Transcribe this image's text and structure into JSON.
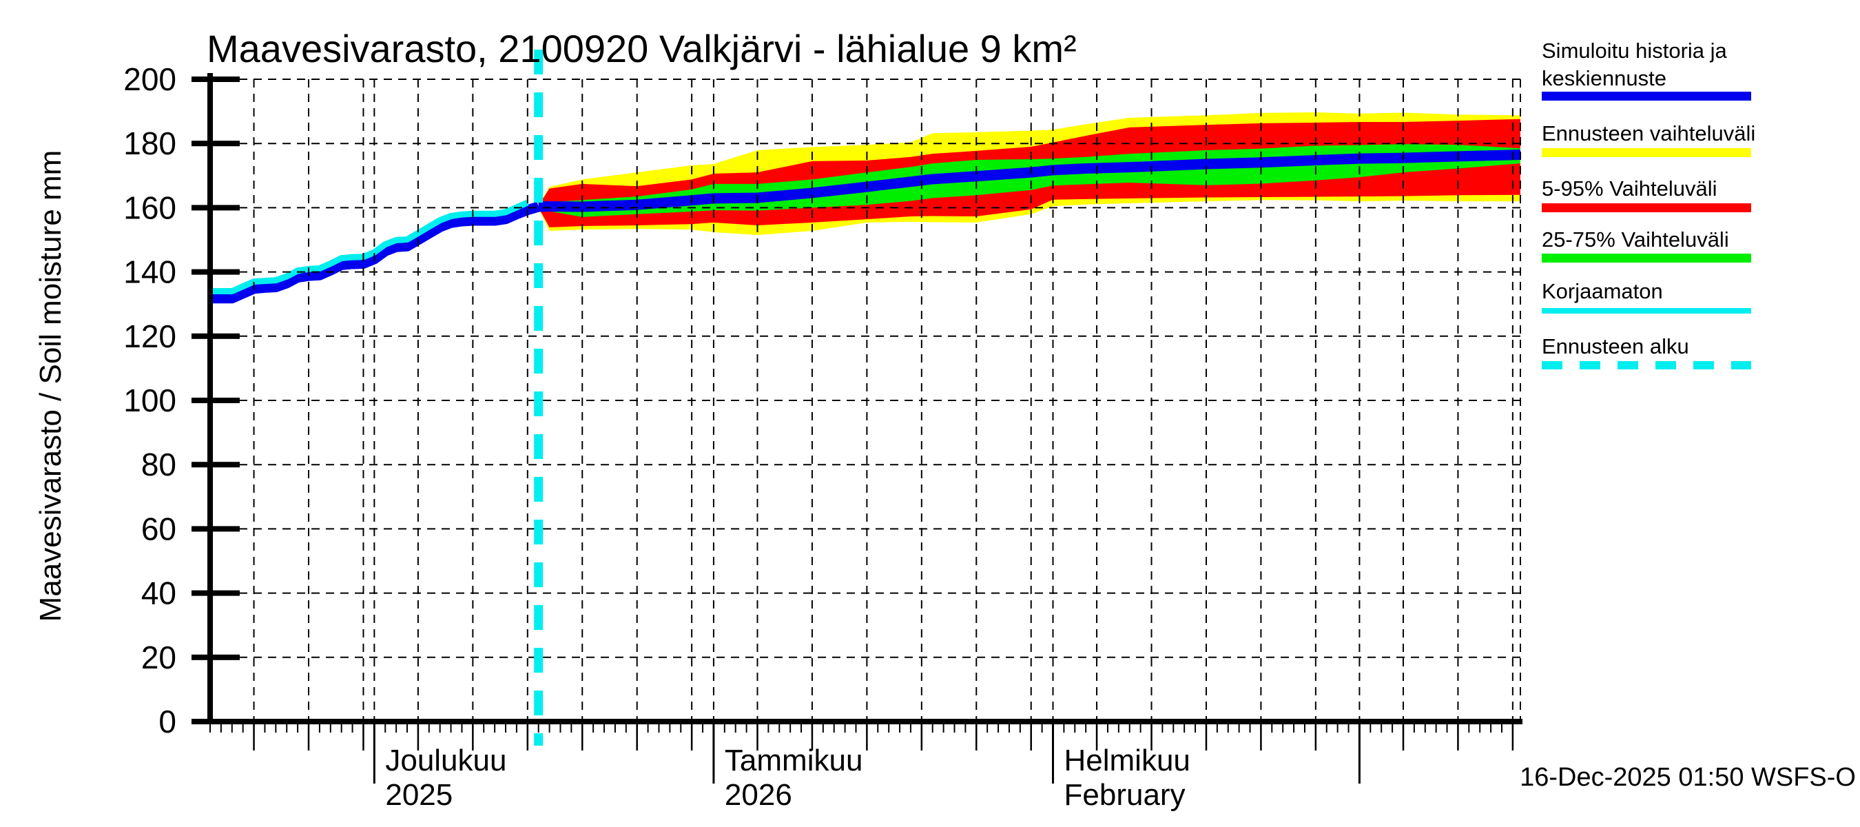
{
  "title": "Maavesivarasto, 2100920 Valkjärvi - lähialue 9 km²",
  "footer": {
    "timestamp": "16-Dec-2025 01:50 WSFS-O"
  },
  "y_axis": {
    "label": "Maavesivarasto / Soil moisture",
    "unit": "mm",
    "label_full": "Maavesivarasto / Soil moisture  mm",
    "min": 0,
    "max": 200,
    "ticks": [
      0,
      20,
      40,
      60,
      80,
      100,
      120,
      140,
      160,
      180,
      200
    ]
  },
  "x_axis": {
    "month_labels": [
      {
        "label": "Joulukuu",
        "sublabel": "2025",
        "start_day": 15
      },
      {
        "label": "Tammikuu",
        "sublabel": "2026",
        "start_day": 46
      },
      {
        "label": "Helmikuu",
        "sublabel": "February",
        "start_day": 77
      }
    ],
    "month_tick_days": [
      15,
      46,
      77,
      105
    ],
    "five_day_tick_days": [
      4,
      9,
      14,
      19,
      24,
      29,
      34,
      39,
      44,
      50,
      55,
      60,
      65,
      70,
      75,
      81,
      86,
      91,
      96,
      101,
      109,
      114,
      119
    ],
    "grid_days": [
      4,
      9,
      14,
      15,
      19,
      24,
      29,
      34,
      39,
      44,
      46,
      50,
      55,
      60,
      65,
      70,
      75,
      77,
      81,
      86,
      91,
      96,
      101,
      105,
      109,
      114,
      119,
      119.7
    ],
    "total_days": 119.7
  },
  "legend": {
    "entries": [
      {
        "name": "simulated-history-and-median-forecast",
        "lines": [
          "Simuloitu historia ja",
          "keskiennuste"
        ],
        "color": "#0000ee",
        "style": "solid",
        "thickness": 13
      },
      {
        "name": "forecast-range",
        "lines": [
          "Ennusteen vaihteluväli"
        ],
        "color": "#ffff00",
        "style": "solid",
        "thickness": 13
      },
      {
        "name": "range-5-95",
        "lines": [
          "5-95% Vaihteluväli"
        ],
        "color": "#ff0000",
        "style": "solid",
        "thickness": 13
      },
      {
        "name": "range-25-75",
        "lines": [
          "25-75% Vaihteluväli"
        ],
        "color": "#00ee00",
        "style": "solid",
        "thickness": 13
      },
      {
        "name": "uncorrected",
        "lines": [
          "Korjaamaton"
        ],
        "color": "#00eeee",
        "style": "solid",
        "thickness": 8
      },
      {
        "name": "forecast-start",
        "lines": [
          "Ennusteen alku"
        ],
        "color": "#00eeee",
        "style": "dashed",
        "thickness": 12
      }
    ]
  },
  "colors": {
    "history_blue": "#0000ee",
    "median_blue": "#0000ee",
    "korjaamaton_cyan": "#00eeee",
    "range_yellow": "#ffff00",
    "range_red": "#ff0000",
    "range_green": "#00ee00",
    "forecast_start_cyan": "#00eeee",
    "grid_black": "#000000"
  },
  "chart_data": {
    "type": "line",
    "title": "Maavesivarasto, 2100920 Valkjärvi - lähialue 9 km²",
    "ylabel": "Maavesivarasto / Soil moisture",
    "unit": "mm",
    "ylim": [
      0,
      200
    ],
    "x_domain_days": [
      0,
      119.7
    ],
    "forecast_start_day": 30,
    "grid": "dashed-both-axes",
    "legend_position": "right-outside",
    "history": {
      "name": "Simuloitu historia",
      "days": [
        0,
        1,
        2,
        3,
        4,
        5,
        6,
        7,
        8,
        9,
        10,
        11,
        12,
        13,
        14,
        15,
        16,
        17,
        18,
        19,
        20,
        21,
        22,
        23,
        24,
        25,
        26,
        27,
        28,
        29,
        30
      ],
      "values": [
        131.8,
        131.8,
        131.8,
        133.3,
        134.8,
        135.1,
        135.3,
        136.5,
        138.3,
        138.8,
        139.0,
        140.5,
        142.2,
        142.5,
        142.6,
        144.0,
        146.5,
        147.8,
        148.0,
        150.0,
        152.0,
        154.0,
        155.3,
        155.8,
        156.0,
        156.0,
        156.0,
        156.5,
        158.0,
        159.3,
        160.3
      ]
    },
    "korjaamaton": {
      "name": "Korjaamaton",
      "days": [
        0,
        1,
        2,
        3,
        4,
        5,
        6,
        7,
        8,
        9,
        10,
        11,
        12,
        13,
        14,
        15,
        16,
        17,
        18,
        19,
        20,
        21,
        22,
        23,
        24,
        25,
        26,
        27,
        28,
        29
      ],
      "values": [
        134.0,
        134.0,
        134.0,
        135.5,
        137.0,
        137.2,
        137.4,
        138.6,
        140.4,
        140.9,
        141.1,
        142.6,
        144.3,
        144.6,
        144.7,
        146.1,
        148.6,
        149.9,
        150.1,
        152.1,
        154.1,
        156.1,
        157.4,
        157.9,
        158.1,
        158.1,
        158.1,
        158.6,
        160.1,
        161.6
      ]
    },
    "forecast": {
      "days": [
        30,
        31,
        34,
        39,
        44,
        46,
        50,
        55,
        60,
        64,
        66,
        70,
        75,
        77,
        80,
        84,
        91,
        96,
        101,
        105,
        109,
        114,
        119.7
      ],
      "median": [
        160.3,
        160.4,
        160.3,
        160.9,
        162.3,
        162.9,
        163.1,
        164.6,
        166.5,
        168.1,
        168.9,
        169.8,
        171.0,
        171.7,
        172.2,
        172.6,
        173.6,
        174.1,
        174.8,
        175.3,
        175.5,
        176.0,
        176.5
      ],
      "green_hi": [
        160.6,
        161.7,
        162.4,
        163.5,
        165.7,
        167.4,
        167.4,
        168.8,
        171.0,
        172.7,
        173.8,
        174.9,
        175.1,
        175.3,
        175.8,
        176.8,
        177.9,
        178.4,
        179.3,
        179.5,
        179.8,
        179.6,
        178.5
      ],
      "green_lo": [
        160.1,
        158.9,
        157.1,
        158.0,
        158.8,
        159.2,
        159.1,
        160.0,
        160.9,
        162.1,
        163.0,
        163.9,
        165.5,
        166.9,
        167.3,
        167.8,
        167.0,
        167.5,
        168.5,
        169.5,
        171.0,
        172.2,
        173.8
      ],
      "red_hi": [
        160.7,
        166.0,
        167.4,
        166.7,
        168.8,
        170.6,
        171.0,
        174.5,
        174.7,
        175.8,
        176.8,
        177.7,
        179.0,
        180.3,
        182.4,
        185.0,
        185.8,
        186.3,
        186.5,
        186.7,
        186.7,
        187.1,
        187.6
      ],
      "red_lo": [
        160.0,
        153.9,
        154.3,
        154.5,
        154.9,
        155.4,
        154.5,
        155.4,
        156.4,
        157.3,
        157.4,
        157.3,
        159.5,
        162.5,
        162.7,
        162.9,
        163.2,
        163.3,
        163.4,
        163.5,
        163.6,
        163.9,
        164.0
      ],
      "yellow_hi": [
        160.8,
        166.5,
        168.8,
        171.0,
        173.2,
        173.6,
        177.9,
        178.9,
        179.6,
        180.4,
        183.2,
        183.5,
        184.0,
        184.3,
        186.0,
        188.0,
        188.8,
        189.5,
        189.7,
        189.3,
        189.6,
        189.0,
        188.8
      ],
      "yellow_lo": [
        159.9,
        152.8,
        153.2,
        153.4,
        153.2,
        152.4,
        151.5,
        152.8,
        155.4,
        155.6,
        155.5,
        155.4,
        158.0,
        160.5,
        161.0,
        161.4,
        162.0,
        162.4,
        162.3,
        162.0,
        162.2,
        162.0,
        162.0
      ]
    }
  }
}
